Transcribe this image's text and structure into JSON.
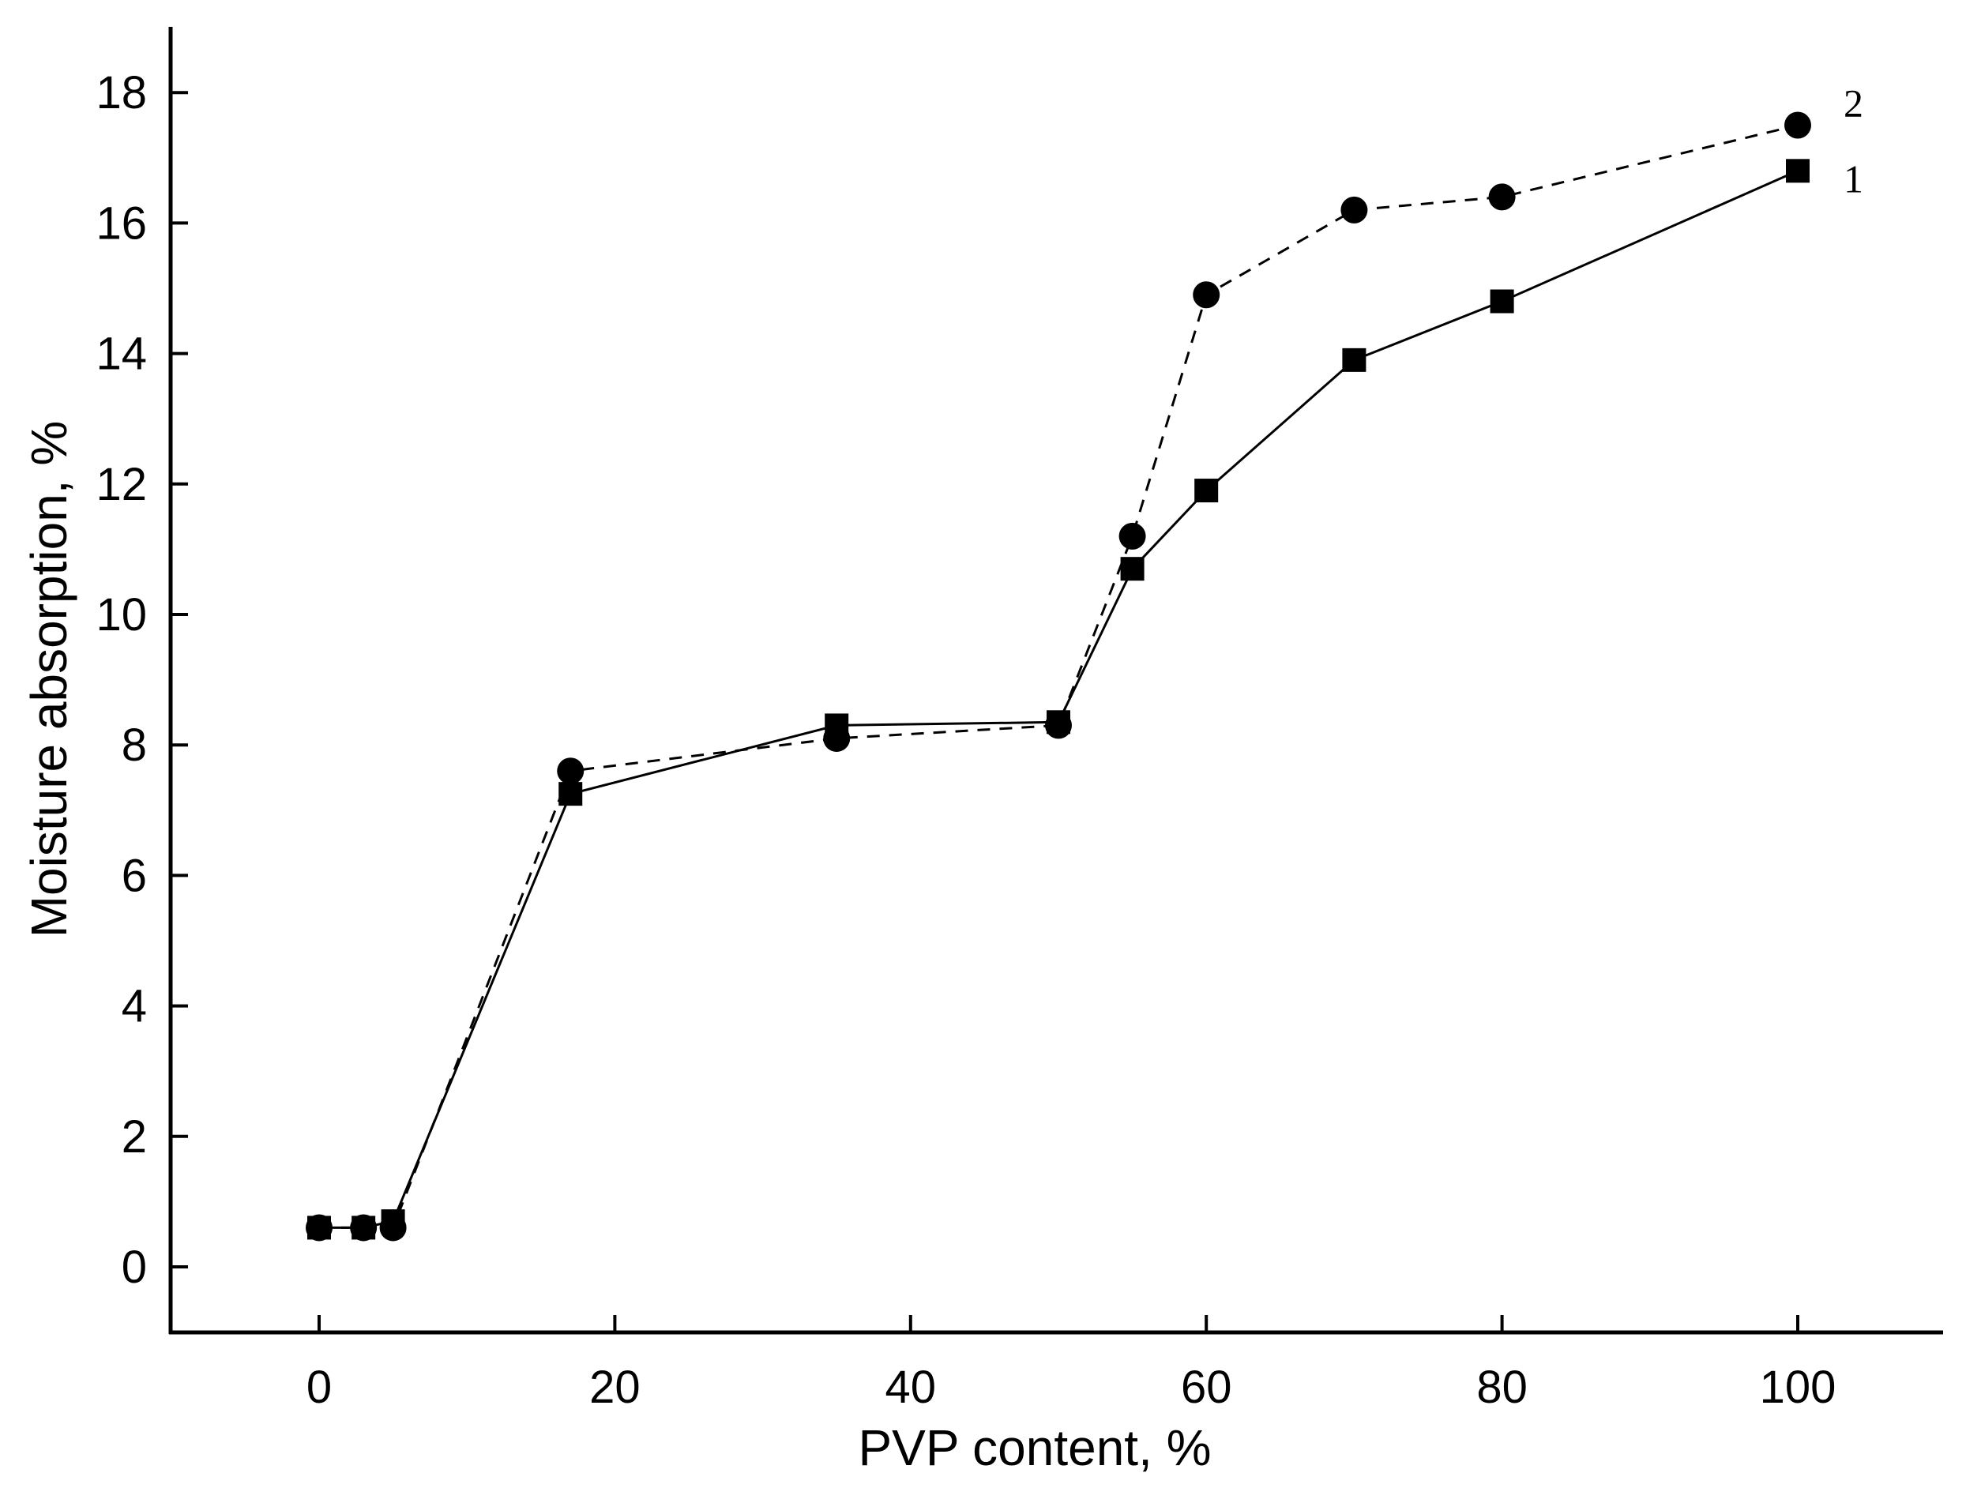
{
  "chart_data": {
    "type": "line",
    "xlabel": "PVP content, %",
    "ylabel": "Moisture absorption, %",
    "xlim": [
      -10,
      110
    ],
    "ylim": [
      -1,
      19
    ],
    "xticks": [
      0,
      20,
      40,
      60,
      80,
      100
    ],
    "yticks": [
      0,
      2,
      4,
      6,
      8,
      10,
      12,
      14,
      16,
      18
    ],
    "grid": false,
    "series": [
      {
        "name": "1",
        "marker": "square",
        "line_style": "solid",
        "x": [
          0,
          3,
          5,
          17,
          35,
          50,
          55,
          60,
          70,
          80,
          100
        ],
        "y": [
          0.6,
          0.6,
          0.7,
          7.25,
          8.3,
          8.35,
          10.7,
          11.9,
          13.9,
          14.8,
          16.8
        ]
      },
      {
        "name": "2",
        "marker": "circle",
        "line_style": "dashed",
        "x": [
          0,
          3,
          5,
          17,
          35,
          50,
          55,
          60,
          70,
          80,
          100
        ],
        "y": [
          0.6,
          0.6,
          0.6,
          7.6,
          8.1,
          8.3,
          11.2,
          14.9,
          16.2,
          16.4,
          17.5
        ]
      }
    ],
    "colors": {
      "line": "#000000",
      "marker": "#000000",
      "background": "#ffffff"
    }
  }
}
